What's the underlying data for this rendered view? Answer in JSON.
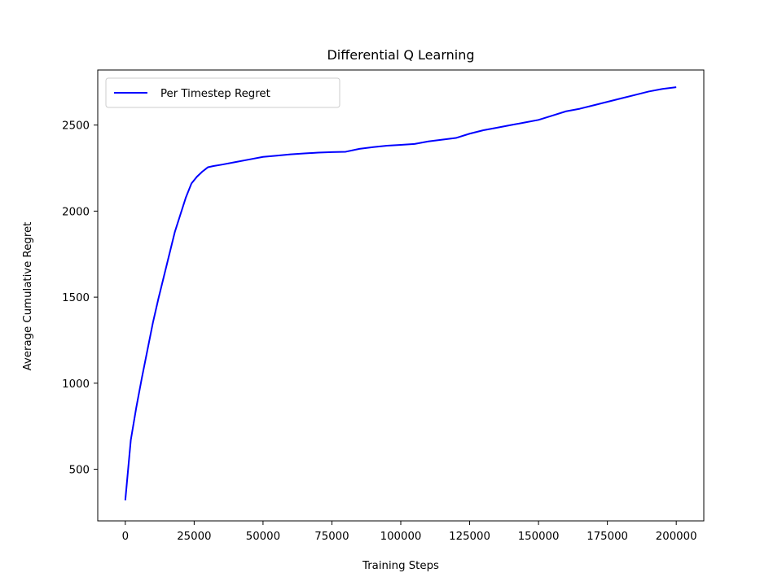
{
  "chart_data": {
    "type": "line",
    "title": "Differential Q Learning",
    "xlabel": "Training Steps",
    "ylabel": "Average Cumulative Regret",
    "xlim": [
      -10000,
      210000
    ],
    "ylim": [
      200,
      2820
    ],
    "xticks": [
      0,
      25000,
      50000,
      75000,
      100000,
      125000,
      150000,
      175000,
      200000
    ],
    "yticks": [
      500,
      1000,
      1500,
      2000,
      2500
    ],
    "grid": false,
    "legend_position": "top-left",
    "series": [
      {
        "name": "Per Timestep Regret",
        "color": "#0000ff",
        "x": [
          0,
          2000,
          4000,
          6000,
          8000,
          10000,
          12000,
          14000,
          16000,
          18000,
          20000,
          22000,
          24000,
          26000,
          28000,
          30000,
          32000,
          35000,
          40000,
          45000,
          50000,
          55000,
          60000,
          65000,
          70000,
          75000,
          80000,
          85000,
          90000,
          95000,
          100000,
          105000,
          110000,
          115000,
          120000,
          125000,
          130000,
          135000,
          140000,
          145000,
          150000,
          155000,
          160000,
          165000,
          170000,
          175000,
          180000,
          185000,
          190000,
          195000,
          200000
        ],
        "values": [
          320,
          670,
          860,
          1030,
          1190,
          1350,
          1490,
          1620,
          1750,
          1880,
          1980,
          2080,
          2160,
          2200,
          2230,
          2255,
          2262,
          2270,
          2285,
          2300,
          2315,
          2322,
          2330,
          2335,
          2340,
          2343,
          2345,
          2362,
          2372,
          2380,
          2385,
          2390,
          2405,
          2415,
          2425,
          2450,
          2470,
          2485,
          2500,
          2515,
          2530,
          2555,
          2580,
          2595,
          2615,
          2635,
          2655,
          2675,
          2695,
          2710,
          2720
        ]
      }
    ]
  }
}
